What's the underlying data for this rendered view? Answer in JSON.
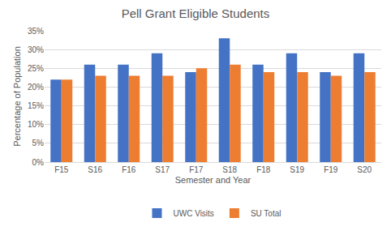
{
  "chart_data": {
    "type": "bar",
    "title": "Pell Grant Eligible Students",
    "x_label": "Semester and Year",
    "y_label": "Percentage of Population",
    "categories": [
      "F15",
      "S16",
      "F16",
      "S17",
      "F17",
      "S18",
      "F18",
      "S19",
      "F19",
      "S20"
    ],
    "series": [
      {
        "name": "UWC Visits",
        "color": "#4472c4",
        "values": [
          22,
          26,
          26,
          29,
          24,
          33,
          26,
          29,
          24,
          29
        ]
      },
      {
        "name": "SU Total",
        "color": "#ed7d31",
        "values": [
          22,
          23,
          23,
          23,
          25,
          26,
          24,
          24,
          23,
          24
        ]
      }
    ],
    "ylim": [
      0,
      35
    ],
    "yticks": [
      {
        "value": 0,
        "label": "0%"
      },
      {
        "value": 5,
        "label": "5%"
      },
      {
        "value": 10,
        "label": "10%"
      },
      {
        "value": 15,
        "label": "15%"
      },
      {
        "value": 20,
        "label": "20%"
      },
      {
        "value": 25,
        "label": "25%"
      },
      {
        "value": 30,
        "label": "30%"
      },
      {
        "value": 35,
        "label": "35%"
      }
    ],
    "grid": true,
    "legend": "bottom"
  }
}
